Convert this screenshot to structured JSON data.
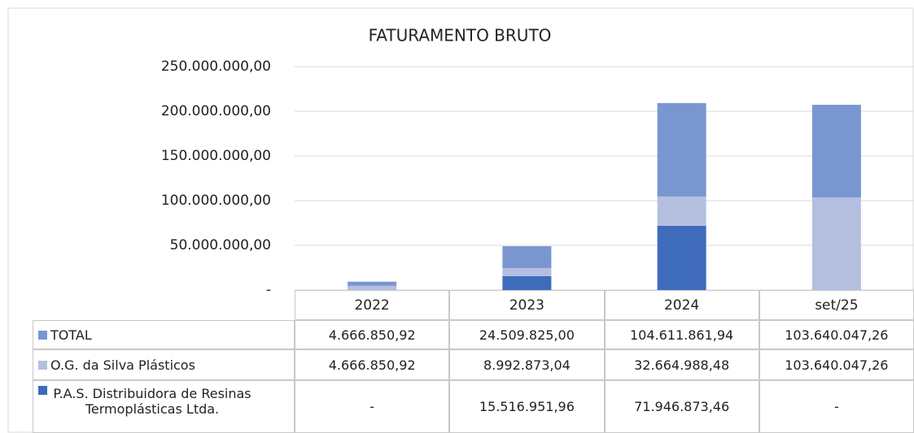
{
  "chart_data": {
    "type": "bar",
    "stacked": true,
    "title": "FATURAMENTO BRUTO",
    "categories": [
      "2022",
      "2023",
      "2024",
      "set/25"
    ],
    "series": [
      {
        "name": "TOTAL",
        "color": "#7a96d0",
        "values": [
          4666850.92,
          24509825.0,
          104611861.94,
          103640047.26
        ],
        "value_labels": [
          "4.666.850,92",
          "24.509.825,00",
          "104.611.861,94",
          "103.640.047,26"
        ]
      },
      {
        "name": "O.G. da Silva Plásticos",
        "color": "#b4bfe0",
        "values": [
          4666850.92,
          8992873.04,
          32664988.48,
          103640047.26
        ],
        "value_labels": [
          "4.666.850,92",
          "8.992.873,04",
          "32.664.988,48",
          "103.640.047,26"
        ]
      },
      {
        "name": "P.A.S. Distribuidora de Resinas Termoplásticas Ltda.",
        "color": "#3f6bbb",
        "values": [
          null,
          15516951.96,
          71946873.46,
          null
        ],
        "value_labels": [
          "-",
          "15.516.951,96",
          "71.946.873,46",
          "-"
        ]
      }
    ],
    "ylim": [
      0,
      250000000
    ],
    "yticks": [
      {
        "value": 0,
        "label": "-"
      },
      {
        "value": 50000000,
        "label": "50.000.000,00"
      },
      {
        "value": 100000000,
        "label": "100.000.000,00"
      },
      {
        "value": 150000000,
        "label": "150.000.000,00"
      },
      {
        "value": 200000000,
        "label": "200.000.000,00"
      },
      {
        "value": 250000000,
        "label": "250.000.000,00"
      }
    ],
    "grid": true
  }
}
